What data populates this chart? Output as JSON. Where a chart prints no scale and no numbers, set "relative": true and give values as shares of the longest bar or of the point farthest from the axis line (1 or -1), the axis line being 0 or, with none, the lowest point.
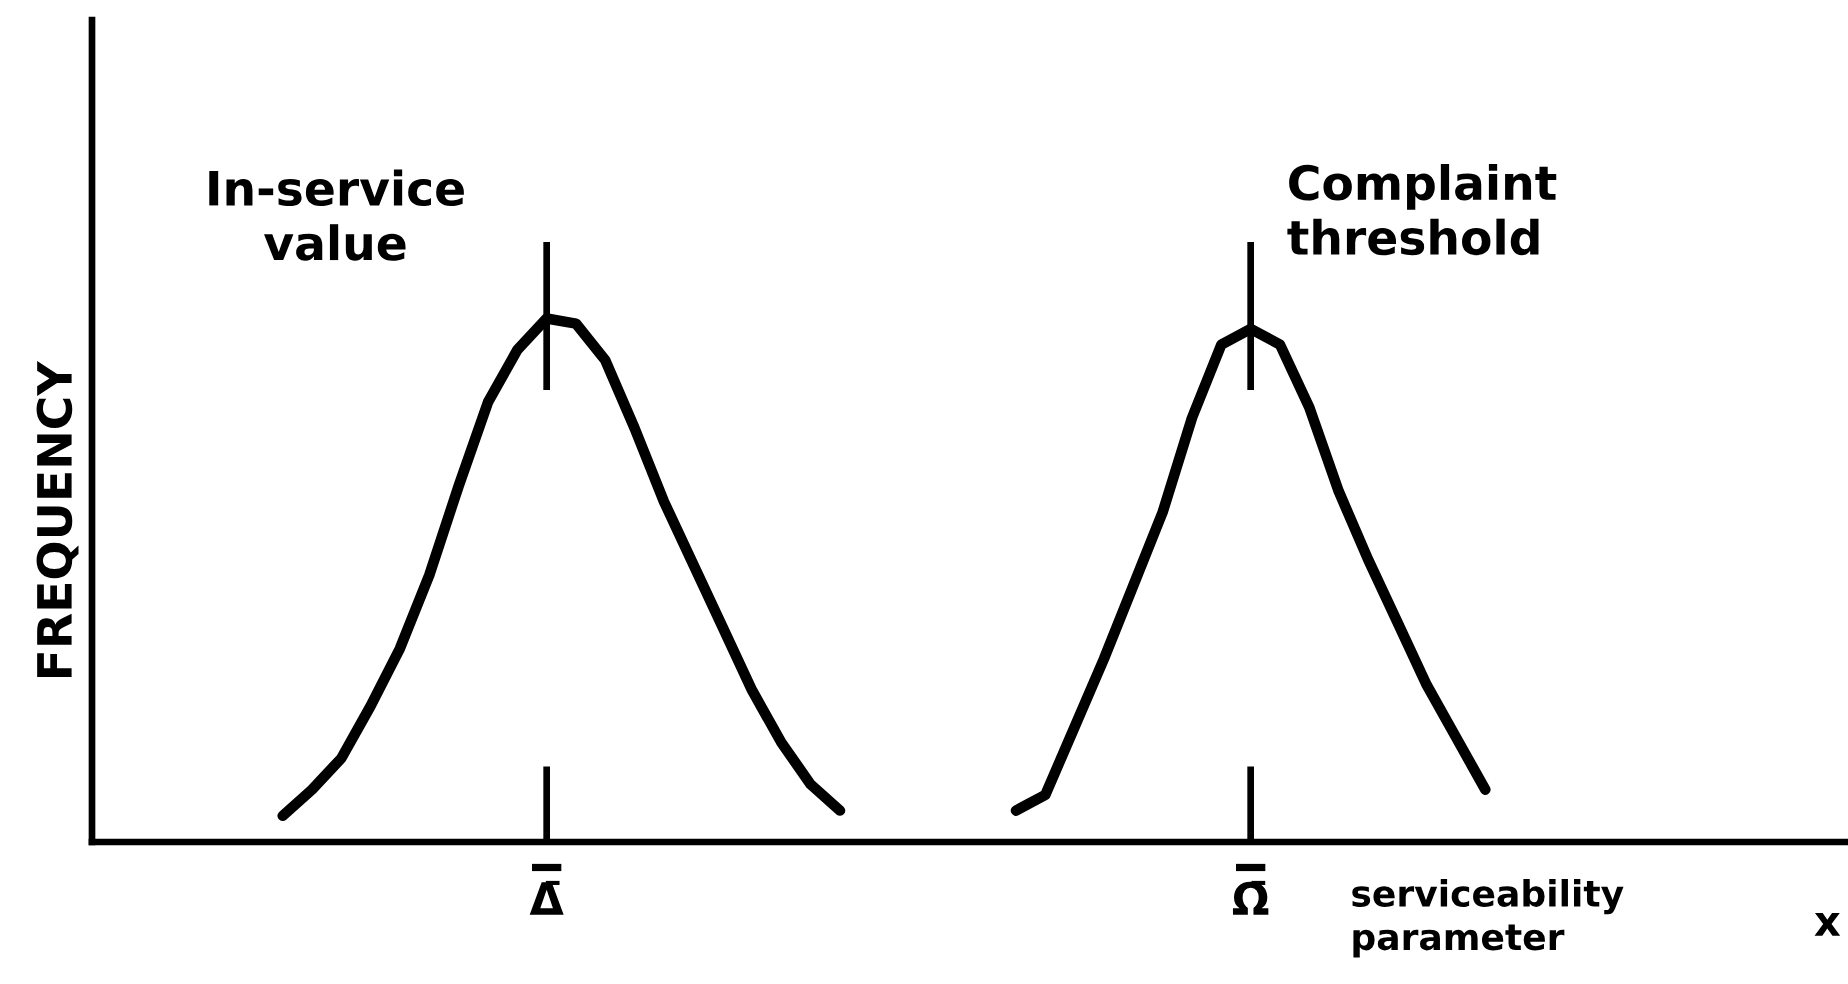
{
  "chart_data": {
    "type": "line",
    "relative": true,
    "tick_labels": "x",
    "xlabel": "serviceability\nparameter",
    "ylabel": "FREQUENCY",
    "categories": [
      null,
      null,
      null,
      null,
      null,
      null,
      null,
      null,
      null,
      null,
      null,
      null,
      null,
      null,
      null,
      "Δ̄",
      null,
      null,
      null,
      null,
      null,
      null,
      null,
      null,
      null,
      null,
      null,
      null,
      null,
      null,
      null,
      null,
      null,
      null,
      null,
      null,
      null,
      null,
      null,
      "Ω̄",
      null,
      null,
      null,
      null,
      null,
      null,
      null,
      null,
      null,
      null,
      null,
      null,
      null,
      null,
      null,
      null,
      null,
      null,
      null,
      null
    ],
    "series": [
      {
        "color": "#000000",
        "values": [
          null,
          null,
          null,
          null,
          null,
          null,
          0.05,
          0.1,
          0.16,
          0.26,
          0.37,
          0.51,
          0.68,
          0.84,
          0.94,
          1,
          0.99,
          0.92,
          0.79,
          0.65,
          0.53,
          0.41,
          0.29,
          0.19,
          0.11,
          0.06,
          null,
          null,
          null,
          null,
          null,
          null,
          null,
          null,
          null,
          null,
          null,
          null,
          null,
          null,
          null,
          null,
          null,
          null,
          null,
          null,
          null,
          null,
          null,
          null,
          null,
          null,
          null,
          null,
          null,
          null,
          null,
          null,
          null,
          null
        ]
      },
      {
        "color": "#000000",
        "values": [
          null,
          null,
          null,
          null,
          null,
          null,
          null,
          null,
          null,
          null,
          null,
          null,
          null,
          null,
          null,
          null,
          null,
          null,
          null,
          null,
          null,
          null,
          null,
          null,
          null,
          null,
          null,
          null,
          null,
          null,
          null,
          0.06,
          0.09,
          0.22,
          0.35,
          0.49,
          0.63,
          0.81,
          0.95,
          0.98,
          0.95,
          0.83,
          0.67,
          0.54,
          0.42,
          0.3,
          0.2,
          0.1,
          null,
          null,
          null,
          null,
          null,
          null,
          null,
          null,
          null,
          null,
          null,
          null
        ]
      }
    ],
    "ref_lines": [
      {
        "axis": "x",
        "value": "Δ̄",
        "label": "In-service\nvalue",
        "color": "#000000"
      },
      {
        "axis": "x",
        "value": "Ω̄",
        "label": "Complaint\nthreshold",
        "color": "#000000"
      }
    ],
    "annotations": [
      "x"
    ]
  }
}
